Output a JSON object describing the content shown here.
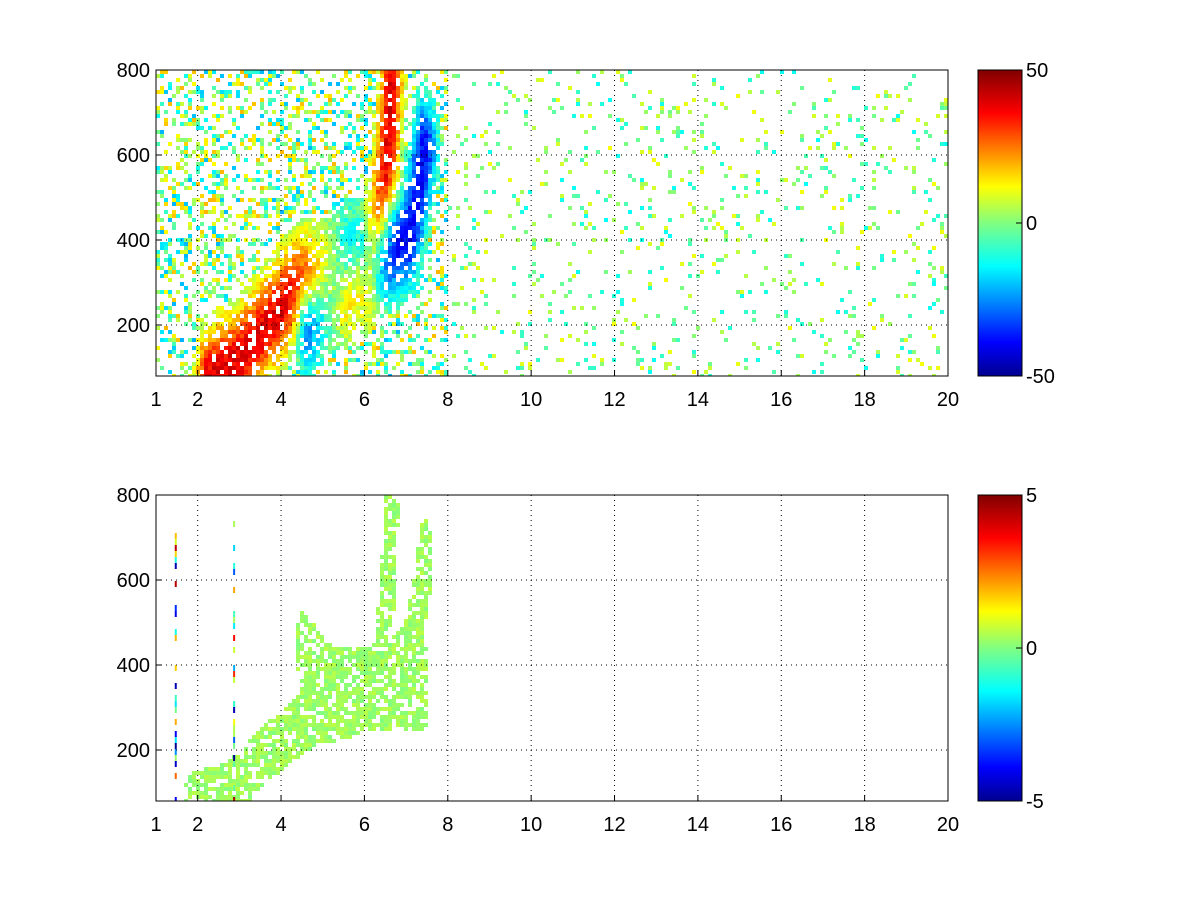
{
  "chart_data": [
    {
      "type": "heatmap",
      "title": "",
      "xlabel": "",
      "ylabel": "",
      "xlim": [
        1,
        20
      ],
      "ylim": [
        80,
        800
      ],
      "xticks": [
        "1",
        "2",
        "4",
        "6",
        "8",
        "10",
        "12",
        "14",
        "16",
        "18",
        "20"
      ],
      "xtick_values": [
        1,
        2,
        4,
        6,
        8,
        10,
        12,
        14,
        16,
        18,
        20
      ],
      "yticks": [
        "200",
        "400",
        "600",
        "800"
      ],
      "ytick_values": [
        200,
        400,
        600,
        800
      ],
      "grid": true,
      "colormap": "jet",
      "colorbar": {
        "min": -50,
        "max": 50,
        "ticks": [
          "50",
          "0",
          "-50"
        ],
        "tick_values": [
          50,
          0,
          -50
        ]
      },
      "features": {
        "positive_ridge": [
          [
            2.2,
            80
          ],
          [
            3.0,
            130
          ],
          [
            3.5,
            190
          ],
          [
            4.0,
            250
          ],
          [
            4.4,
            300
          ],
          [
            5.0,
            310
          ],
          [
            5.5,
            300
          ],
          [
            6.0,
            330
          ],
          [
            6.3,
            450
          ],
          [
            6.5,
            600
          ],
          [
            6.6,
            780
          ]
        ],
        "negative_ridge": [
          [
            4.6,
            220
          ],
          [
            5.0,
            280
          ],
          [
            5.5,
            340
          ],
          [
            6.0,
            360
          ],
          [
            6.5,
            380
          ],
          [
            7.0,
            410
          ],
          [
            7.2,
            500
          ],
          [
            7.4,
            620
          ]
        ],
        "scatter_noise_range": [
          -15,
          15
        ]
      }
    },
    {
      "type": "heatmap",
      "title": "",
      "xlabel": "",
      "ylabel": "",
      "xlim": [
        1,
        20
      ],
      "ylim": [
        80,
        800
      ],
      "xticks": [
        "1",
        "2",
        "4",
        "6",
        "8",
        "10",
        "12",
        "14",
        "16",
        "18",
        "20"
      ],
      "xtick_values": [
        1,
        2,
        4,
        6,
        8,
        10,
        12,
        14,
        16,
        18,
        20
      ],
      "yticks": [
        "200",
        "400",
        "600",
        "800"
      ],
      "ytick_values": [
        200,
        400,
        600,
        800
      ],
      "grid": true,
      "colormap": "jet",
      "colorbar": {
        "min": -5,
        "max": 5,
        "ticks": [
          "5",
          "0",
          "-5"
        ],
        "tick_values": [
          5,
          0,
          -5
        ]
      },
      "features": {
        "band_lower": [
          [
            1.8,
            80
          ],
          [
            2.5,
            100
          ],
          [
            3.0,
            130
          ],
          [
            3.5,
            190
          ],
          [
            4.0,
            230
          ],
          [
            4.5,
            270
          ],
          [
            5.0,
            290
          ],
          [
            5.5,
            300
          ],
          [
            6.0,
            320
          ],
          [
            6.3,
            420
          ],
          [
            6.5,
            560
          ],
          [
            6.6,
            760
          ]
        ],
        "band_upper": [
          [
            4.5,
            450
          ],
          [
            5.0,
            380
          ],
          [
            5.5,
            350
          ],
          [
            6.0,
            360
          ],
          [
            6.5,
            380
          ],
          [
            7.0,
            420
          ],
          [
            7.3,
            550
          ],
          [
            7.4,
            670
          ]
        ],
        "band_value": 0.3,
        "stripe_x": [
          1.45,
          2.85
        ]
      }
    }
  ]
}
